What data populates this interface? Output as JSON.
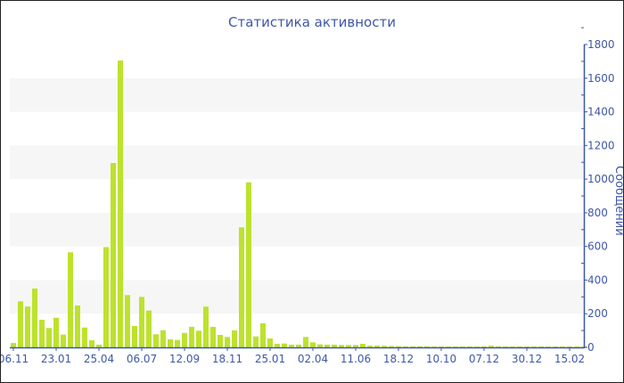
{
  "chart_data": {
    "type": "bar",
    "title": "Статистика активности",
    "ylabel": "Сообщений",
    "xlabel": "",
    "ylim": [
      0,
      1800
    ],
    "y_ticks": [
      0,
      200,
      400,
      600,
      800,
      1000,
      1200,
      1400,
      1600,
      1800
    ],
    "y_axis_side": "right",
    "grid": "alternating horizontal bands",
    "legend": "none",
    "bar_color": "#bde22d",
    "axis_color": "#3e57a8",
    "band_color": "#f6f6f6",
    "x_ticks": [
      {
        "index": 0,
        "label": "06.11"
      },
      {
        "index": 6,
        "label": "23.01"
      },
      {
        "index": 12,
        "label": "25.04"
      },
      {
        "index": 18,
        "label": "06.07"
      },
      {
        "index": 24,
        "label": "12.09"
      },
      {
        "index": 30,
        "label": "18.11"
      },
      {
        "index": 36,
        "label": "25.01"
      },
      {
        "index": 42,
        "label": "02.04"
      },
      {
        "index": 48,
        "label": "11.06"
      },
      {
        "index": 54,
        "label": "18.12"
      },
      {
        "index": 60,
        "label": "10.10"
      },
      {
        "index": 66,
        "label": "07.12"
      },
      {
        "index": 72,
        "label": "30.12"
      },
      {
        "index": 78,
        "label": "15.02"
      }
    ],
    "values": [
      26,
      274,
      243,
      350,
      164,
      115,
      176,
      76,
      565,
      249,
      118,
      42,
      16,
      596,
      1096,
      1705,
      311,
      127,
      300,
      219,
      78,
      102,
      48,
      44,
      86,
      122,
      99,
      242,
      122,
      74,
      62,
      101,
      713,
      981,
      65,
      143,
      53,
      21,
      23,
      16,
      16,
      62,
      30,
      18,
      16,
      16,
      14,
      14,
      14,
      21,
      10,
      10,
      9,
      8,
      7,
      6,
      6,
      6,
      6,
      5,
      5,
      5,
      5,
      5,
      5,
      5,
      6,
      10,
      6,
      5,
      5,
      5,
      5,
      5,
      5,
      5,
      5,
      5,
      5,
      5,
      6
    ]
  }
}
